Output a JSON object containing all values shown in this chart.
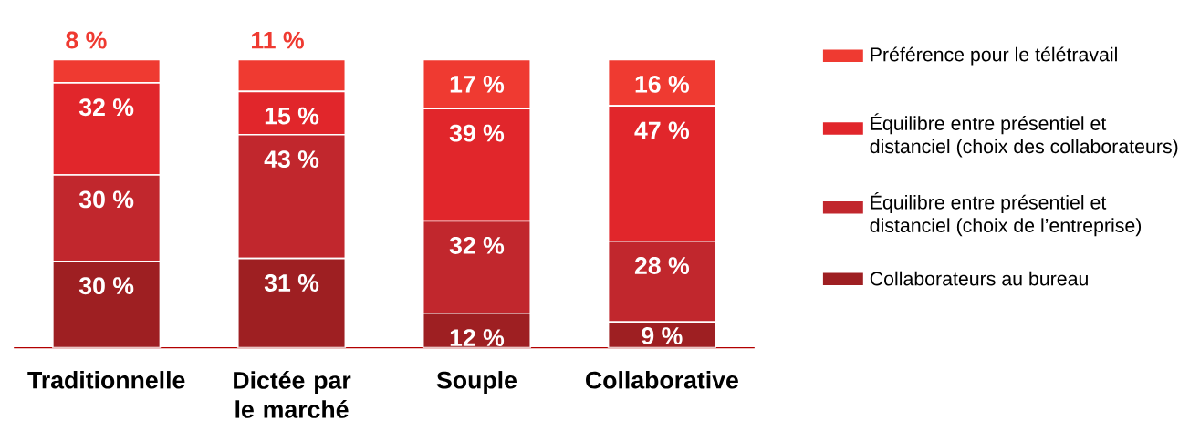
{
  "chart_data": {
    "type": "bar",
    "stacked": true,
    "legend": "right",
    "categories": [
      "Traditionnelle",
      "Dictée par le marché",
      "Souple",
      "Collaborative"
    ],
    "series": [
      {
        "name": "Collaborateurs au bureau",
        "color": "#9e1f22",
        "values": [
          30,
          31,
          12,
          9
        ],
        "value_labels": [
          "30 %",
          "31 %",
          "12 %",
          "9 %"
        ]
      },
      {
        "name": "Équilibre entre présentiel et distanciel (choix de l’entreprise)",
        "color": "#c1272d",
        "values": [
          30,
          43,
          32,
          28
        ],
        "value_labels": [
          "30 %",
          "43 %",
          "32 %",
          "28 %"
        ]
      },
      {
        "name": "Équilibre entre présentiel et distanciel (choix des collaborateurs)",
        "color": "#e1262b",
        "values": [
          32,
          15,
          39,
          47
        ],
        "value_labels": [
          "32 %",
          "15 %",
          "39 %",
          "47 %"
        ]
      },
      {
        "name": "Préférence pour le télétravail",
        "color": "#ef3a31",
        "values": [
          8,
          11,
          17,
          16
        ],
        "value_labels": [
          "8 %",
          "11 %",
          "17 %",
          "16 %"
        ]
      }
    ]
  }
}
